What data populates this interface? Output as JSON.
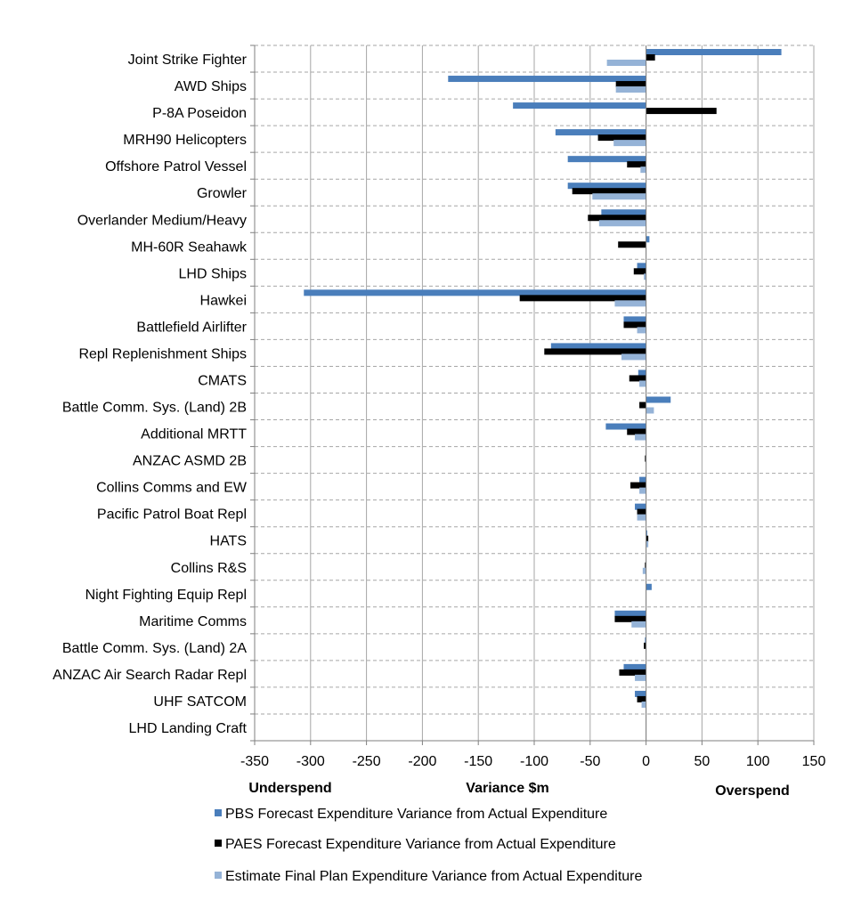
{
  "chart_data": {
    "type": "bar",
    "orientation": "horizontal",
    "xlabel": "Variance $m",
    "annotations": {
      "left": "Underspend",
      "right": "Overspend"
    },
    "xlim": [
      -350,
      150
    ],
    "xticks": [
      -350,
      -300,
      -250,
      -200,
      -150,
      -100,
      -50,
      0,
      50,
      100,
      150
    ],
    "grid": "horizontal dashed",
    "legend_position": "bottom",
    "categories": [
      "Joint Strike Fighter",
      "AWD Ships",
      "P-8A Poseidon",
      "MRH90 Helicopters",
      "Offshore Patrol Vessel",
      "Growler",
      "Overlander Medium/Heavy",
      "MH-60R Seahawk",
      "LHD Ships",
      "Hawkei",
      "Battlefield Airlifter",
      "Repl Replenishment Ships",
      "CMATS",
      "Battle Comm. Sys. (Land) 2B",
      "Additional MRTT",
      "ANZAC ASMD 2B",
      "Collins Comms and EW",
      "Pacific Patrol Boat Repl",
      "HATS",
      "Collins R&S",
      "Night Fighting Equip Repl",
      "Maritime Comms",
      "Battle Comm. Sys. (Land) 2A",
      "ANZAC Air Search Radar Repl",
      "UHF SATCOM",
      "LHD Landing Craft"
    ],
    "series": [
      {
        "name": "PBS Forecast Expenditure Variance from Actual Expenditure",
        "color": "#4a7ebb",
        "values": [
          121,
          -177,
          -119,
          -81,
          -70,
          -70,
          -40,
          3,
          -8,
          -306,
          -20,
          -85,
          -7,
          22,
          -36,
          0,
          -6,
          -10,
          1,
          0,
          5,
          -28,
          -1,
          -20,
          -10,
          0
        ]
      },
      {
        "name": "PAES Forecast Expenditure Variance from Actual Expenditure",
        "color": "#000000",
        "values": [
          8,
          -27,
          63,
          -43,
          -17,
          -66,
          -52,
          -25,
          -11,
          -113,
          -20,
          -91,
          -15,
          -6,
          -17,
          -1,
          -14,
          -8,
          2,
          -1,
          0,
          -28,
          -2,
          -24,
          -8,
          0
        ]
      },
      {
        "name": "Estimate Final Plan Expenditure Variance from Actual Expenditure",
        "color": "#95b3d7",
        "values": [
          -35,
          -27,
          0,
          -29,
          -5,
          -48,
          -42,
          0,
          -2,
          -28,
          -8,
          -22,
          -6,
          7,
          -10,
          0,
          -6,
          -8,
          2,
          -3,
          0,
          -13,
          0,
          -10,
          -4,
          0
        ]
      }
    ]
  }
}
